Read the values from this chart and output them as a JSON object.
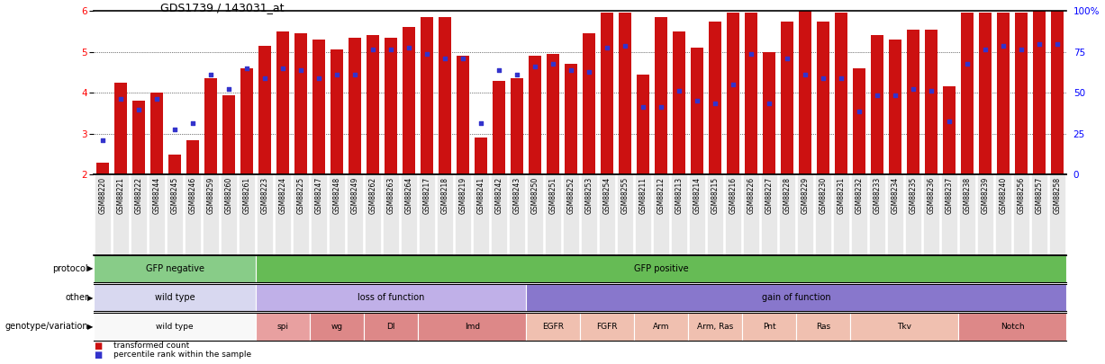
{
  "title": "GDS1739 / 143031_at",
  "samples": [
    "GSM88220",
    "GSM88221",
    "GSM88222",
    "GSM88244",
    "GSM88245",
    "GSM88246",
    "GSM88259",
    "GSM88260",
    "GSM88261",
    "GSM88223",
    "GSM88224",
    "GSM88225",
    "GSM88247",
    "GSM88248",
    "GSM88249",
    "GSM88262",
    "GSM88263",
    "GSM88264",
    "GSM88217",
    "GSM88218",
    "GSM88219",
    "GSM88241",
    "GSM88242",
    "GSM88243",
    "GSM88250",
    "GSM88251",
    "GSM88252",
    "GSM88253",
    "GSM88254",
    "GSM88255",
    "GSM88211",
    "GSM88212",
    "GSM88213",
    "GSM88214",
    "GSM88215",
    "GSM88216",
    "GSM88226",
    "GSM88227",
    "GSM88228",
    "GSM88229",
    "GSM88230",
    "GSM88231",
    "GSM88232",
    "GSM88233",
    "GSM88234",
    "GSM88235",
    "GSM88236",
    "GSM88237",
    "GSM88238",
    "GSM88239",
    "GSM88240",
    "GSM88256",
    "GSM88257",
    "GSM88258"
  ],
  "bar_values": [
    2.3,
    4.25,
    3.8,
    4.0,
    2.5,
    2.85,
    4.35,
    3.95,
    4.6,
    5.15,
    5.5,
    5.45,
    5.3,
    5.05,
    5.35,
    5.4,
    5.35,
    5.6,
    5.85,
    5.85,
    4.9,
    2.9,
    4.3,
    4.35,
    4.9,
    4.95,
    4.7,
    5.45,
    5.95,
    5.95,
    4.45,
    5.85,
    5.5,
    5.1,
    5.75,
    5.95,
    5.95,
    5.0,
    5.75,
    6.0,
    5.75,
    5.95,
    4.6,
    5.4,
    5.3,
    5.55,
    5.55,
    4.15,
    5.95,
    5.95,
    5.95,
    5.95,
    6.0,
    6.0
  ],
  "percentile_values": [
    2.85,
    3.85,
    3.6,
    3.85,
    3.1,
    3.25,
    4.45,
    4.1,
    4.6,
    4.35,
    4.6,
    4.55,
    4.35,
    4.45,
    4.45,
    5.05,
    5.05,
    5.1,
    4.95,
    4.85,
    4.85,
    3.25,
    4.55,
    4.45,
    4.65,
    4.7,
    4.55,
    4.5,
    5.1,
    5.15,
    3.65,
    3.65,
    4.05,
    3.8,
    3.75,
    4.2,
    4.95,
    3.75,
    4.85,
    4.45,
    4.35,
    4.35,
    3.55,
    3.95,
    3.95,
    4.1,
    4.05,
    3.3,
    4.7,
    5.05,
    5.15,
    5.05,
    5.2,
    5.2
  ],
  "ylim": [
    2.0,
    6.0
  ],
  "yticks": [
    2,
    3,
    4,
    5,
    6
  ],
  "ytick_labels": [
    "2",
    "3",
    "4",
    "5",
    "6"
  ],
  "right_yticks": [
    0,
    25,
    50,
    75,
    100
  ],
  "right_ytick_labels": [
    "0",
    "25",
    "50",
    "75",
    "100%"
  ],
  "bar_color": "#cc1111",
  "percentile_color": "#3333cc",
  "protocol_blocks": [
    {
      "label": "GFP negative",
      "start": 0,
      "end": 9,
      "color": "#88cc88"
    },
    {
      "label": "GFP positive",
      "start": 9,
      "end": 54,
      "color": "#66bb55"
    }
  ],
  "other_blocks": [
    {
      "label": "wild type",
      "start": 0,
      "end": 9,
      "color": "#d8d8f0"
    },
    {
      "label": "loss of function",
      "start": 9,
      "end": 24,
      "color": "#c0b0e8"
    },
    {
      "label": "gain of function",
      "start": 24,
      "end": 54,
      "color": "#8877cc"
    }
  ],
  "genotype_blocks": [
    {
      "label": "wild type",
      "start": 0,
      "end": 9,
      "color": "#f8f8f8"
    },
    {
      "label": "spi",
      "start": 9,
      "end": 12,
      "color": "#e8a0a0"
    },
    {
      "label": "wg",
      "start": 12,
      "end": 15,
      "color": "#dd8888"
    },
    {
      "label": "Dl",
      "start": 15,
      "end": 18,
      "color": "#dd8888"
    },
    {
      "label": "Imd",
      "start": 18,
      "end": 24,
      "color": "#dd8888"
    },
    {
      "label": "EGFR",
      "start": 24,
      "end": 27,
      "color": "#f0c0b0"
    },
    {
      "label": "FGFR",
      "start": 27,
      "end": 30,
      "color": "#f0c0b0"
    },
    {
      "label": "Arm",
      "start": 30,
      "end": 33,
      "color": "#f0c0b0"
    },
    {
      "label": "Arm, Ras",
      "start": 33,
      "end": 36,
      "color": "#f0c0b0"
    },
    {
      "label": "Pnt",
      "start": 36,
      "end": 39,
      "color": "#f0c0b0"
    },
    {
      "label": "Ras",
      "start": 39,
      "end": 42,
      "color": "#f0c0b0"
    },
    {
      "label": "Tkv",
      "start": 42,
      "end": 48,
      "color": "#f0c0b0"
    },
    {
      "label": "Notch",
      "start": 48,
      "end": 54,
      "color": "#dd8888"
    }
  ]
}
